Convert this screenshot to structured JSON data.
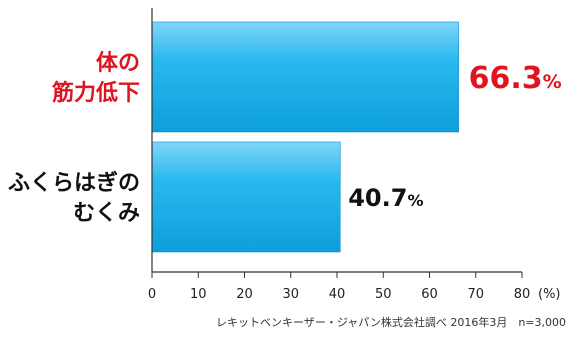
{
  "chart_data": {
    "type": "bar",
    "orientation": "horizontal",
    "categories": [
      {
        "lines": [
          "体の",
          "筋力低下"
        ],
        "color": "#e0141e"
      },
      {
        "lines": [
          "ふくらはぎの",
          "むくみ"
        ],
        "color": "#111111"
      }
    ],
    "values": [
      66.3,
      40.7
    ],
    "value_labels": [
      {
        "number": "66.3",
        "unit": "%",
        "color": "#e0141e"
      },
      {
        "number": "40.7",
        "unit": "%",
        "color": "#111111"
      }
    ],
    "xlim": [
      0,
      80
    ],
    "x_ticks": [
      "0",
      "10",
      "20",
      "30",
      "40",
      "50",
      "60",
      "70",
      "80"
    ],
    "x_unit": "(%)",
    "bar_color": "#1ab0ea",
    "grid": false
  },
  "source_note": "レキットベンキーザー・ジャパン株式会社調べ 2016年3月　n=3,000"
}
